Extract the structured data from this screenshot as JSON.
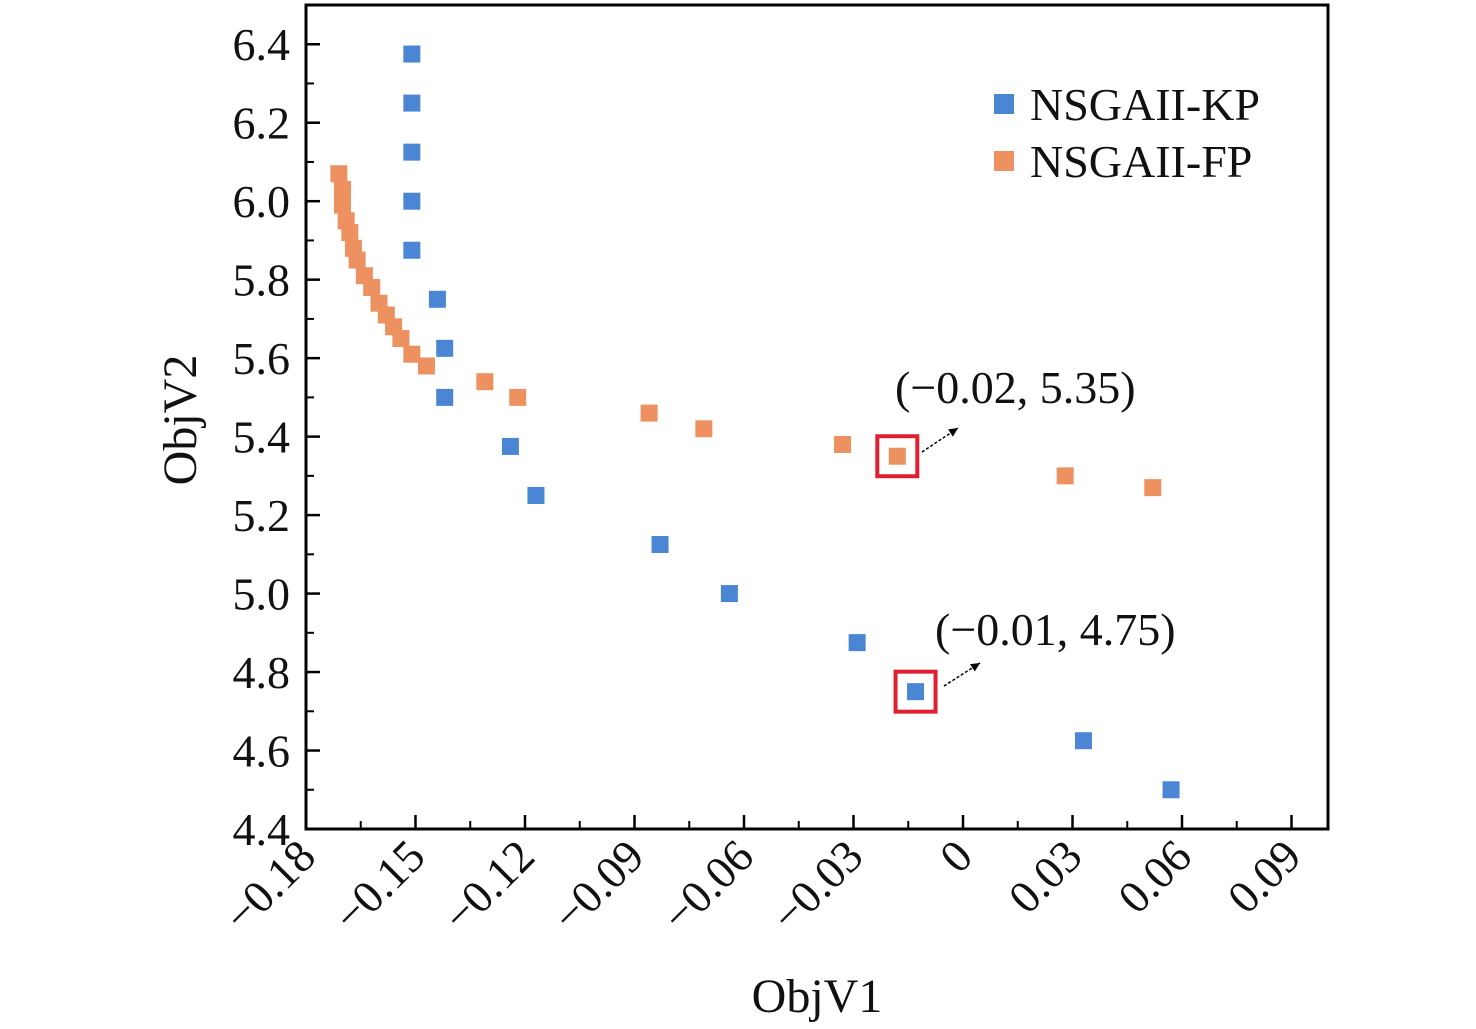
{
  "chart_data": {
    "type": "scatter",
    "xlabel": "ObjV1",
    "ylabel": "ObjV2",
    "xlim": [
      -0.18,
      0.1
    ],
    "ylim": [
      4.4,
      6.5
    ],
    "xticks": [
      -0.18,
      -0.15,
      -0.12,
      -0.09,
      -0.06,
      -0.03,
      0,
      0.03,
      0.06,
      0.09
    ],
    "xtick_labels": [
      "−0.18",
      "−0.15",
      "−0.12",
      "−0.09",
      "−0.06",
      "−0.03",
      "0",
      "0.03",
      "0.06",
      "0.09"
    ],
    "yticks": [
      4.4,
      4.6,
      4.8,
      5.0,
      5.2,
      5.4,
      5.6,
      5.8,
      6.0,
      6.2,
      6.4
    ],
    "ytick_labels": [
      "4.4",
      "4.6",
      "4.8",
      "5.0",
      "5.2",
      "5.4",
      "5.6",
      "5.8",
      "6.0",
      "6.2",
      "6.4"
    ],
    "grid": false,
    "legend_position": "top-right",
    "series": [
      {
        "name": "NSGAII-KP",
        "color": "#4a86d4",
        "points": [
          [
            -0.151,
            6.375
          ],
          [
            -0.151,
            6.25
          ],
          [
            -0.151,
            6.125
          ],
          [
            -0.151,
            6.0
          ],
          [
            -0.151,
            5.875
          ],
          [
            -0.144,
            5.75
          ],
          [
            -0.142,
            5.625
          ],
          [
            -0.142,
            5.5
          ],
          [
            -0.124,
            5.375
          ],
          [
            -0.117,
            5.25
          ],
          [
            -0.083,
            5.125
          ],
          [
            -0.064,
            5.0
          ],
          [
            -0.029,
            4.875
          ],
          [
            -0.013,
            4.75
          ],
          [
            0.033,
            4.625
          ],
          [
            0.057,
            4.5
          ]
        ]
      },
      {
        "name": "NSGAII-FP",
        "color": "#ee9160",
        "points": [
          [
            -0.171,
            6.07
          ],
          [
            -0.17,
            6.03
          ],
          [
            -0.17,
            5.99
          ],
          [
            -0.169,
            5.95
          ],
          [
            -0.168,
            5.92
          ],
          [
            -0.167,
            5.88
          ],
          [
            -0.166,
            5.85
          ],
          [
            -0.164,
            5.81
          ],
          [
            -0.162,
            5.78
          ],
          [
            -0.16,
            5.74
          ],
          [
            -0.158,
            5.71
          ],
          [
            -0.156,
            5.68
          ],
          [
            -0.154,
            5.65
          ],
          [
            -0.151,
            5.61
          ],
          [
            -0.147,
            5.58
          ],
          [
            -0.131,
            5.54
          ],
          [
            -0.122,
            5.5
          ],
          [
            -0.086,
            5.46
          ],
          [
            -0.071,
            5.42
          ],
          [
            -0.033,
            5.38
          ],
          [
            -0.018,
            5.35
          ],
          [
            0.028,
            5.3
          ],
          [
            0.052,
            5.27
          ]
        ]
      }
    ],
    "annotations": [
      {
        "text": "(−0.02, 5.35)",
        "point": [
          -0.018,
          5.35
        ]
      },
      {
        "text": "(−0.01, 4.75)",
        "point": [
          -0.013,
          4.75
        ]
      }
    ],
    "highlight_color": "#e02030"
  }
}
